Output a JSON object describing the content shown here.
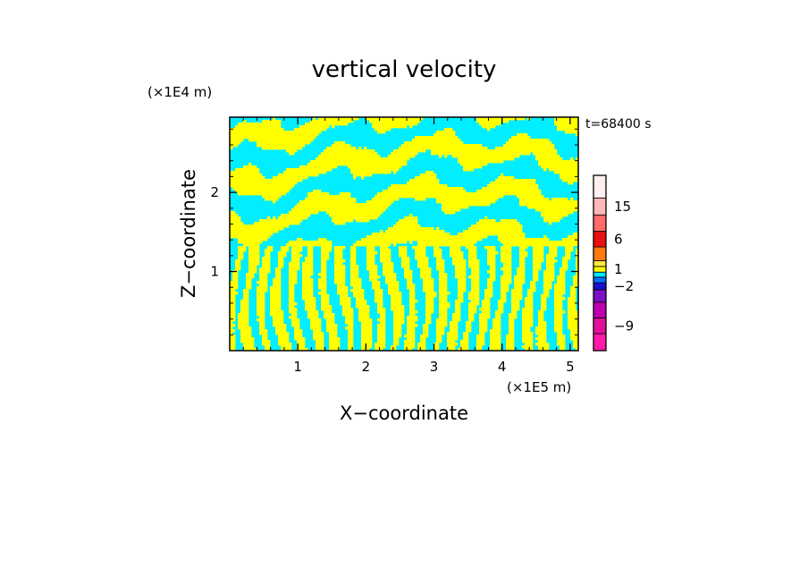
{
  "chart_data": {
    "type": "heatmap",
    "title": "vertical velocity",
    "xlabel": "X−coordinate",
    "ylabel": "Z−coordinate",
    "x_unit_label": "(×1E5 m)",
    "y_unit_label": "(×1E4 m)",
    "time_label": "t=68400 s",
    "xlim": [
      0,
      5.12
    ],
    "ylim": [
      0,
      2.95
    ],
    "x_ticks": [
      1,
      2,
      3,
      4,
      5
    ],
    "y_ticks": [
      1,
      2
    ],
    "x_tick_labels": [
      "1",
      "2",
      "3",
      "4",
      "5"
    ],
    "y_tick_labels": [
      "1",
      "2"
    ],
    "colorbar": {
      "levels": [
        -12,
        -9,
        -6,
        -4,
        -2,
        -1,
        0,
        1,
        2,
        4,
        6,
        10,
        15,
        20,
        25
      ],
      "colors": [
        "#ff1aa8",
        "#e0109a",
        "#c000b0",
        "#7a10c8",
        "#1a10d0",
        "#0070ff",
        "#00e8ff",
        "#ffff00",
        "#ffe840",
        "#ff7a10",
        "#e81010",
        "#ff6a6a",
        "#ffb8b8",
        "#ffeeee"
      ],
      "tick_values": [
        15,
        6,
        1,
        -2,
        -9
      ],
      "tick_labels": [
        "15",
        "6",
        "1",
        "−2",
        "−9"
      ]
    },
    "field_colors": {
      "positive": "#ffff00",
      "negative": "#00eeff"
    }
  }
}
